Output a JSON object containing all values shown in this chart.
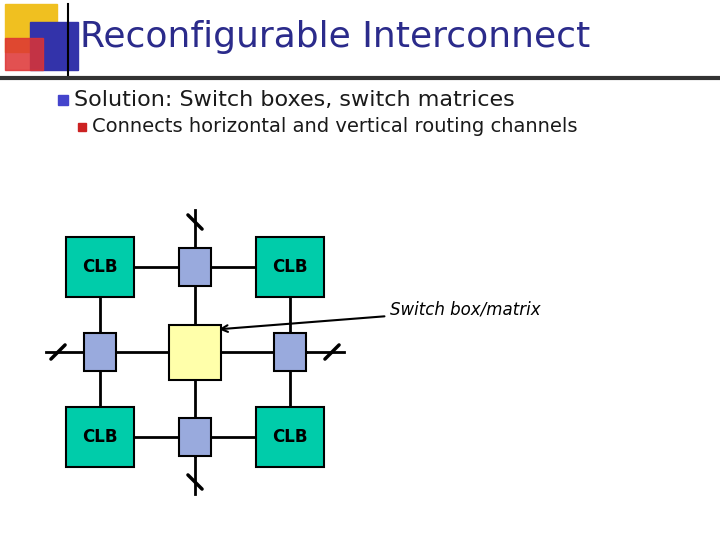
{
  "title": "Reconfigurable Interconnect",
  "title_color": "#2B2B8B",
  "title_fontsize": 26,
  "bullet1": "Solution: Switch boxes, switch matrices",
  "bullet1_color": "#1a1a1a",
  "bullet2": "Connects horizontal and vertical routing channels",
  "bullet2_color": "#1a1a1a",
  "bullet1_marker_color": "#4444cc",
  "bullet2_marker_color": "#cc2222",
  "bg_color": "#ffffff",
  "header_bar_color": "#222266",
  "clb_color": "#00ccaa",
  "switch_small_color": "#99aadd",
  "switch_center_color": "#ffffaa",
  "annotation_text": "Switch box/matrix",
  "annotation_color": "#000000",
  "clb_label": "CLB",
  "clb_fontsize": 12,
  "annotation_fontsize": 12,
  "bullet1_fontsize": 16,
  "bullet2_fontsize": 14
}
